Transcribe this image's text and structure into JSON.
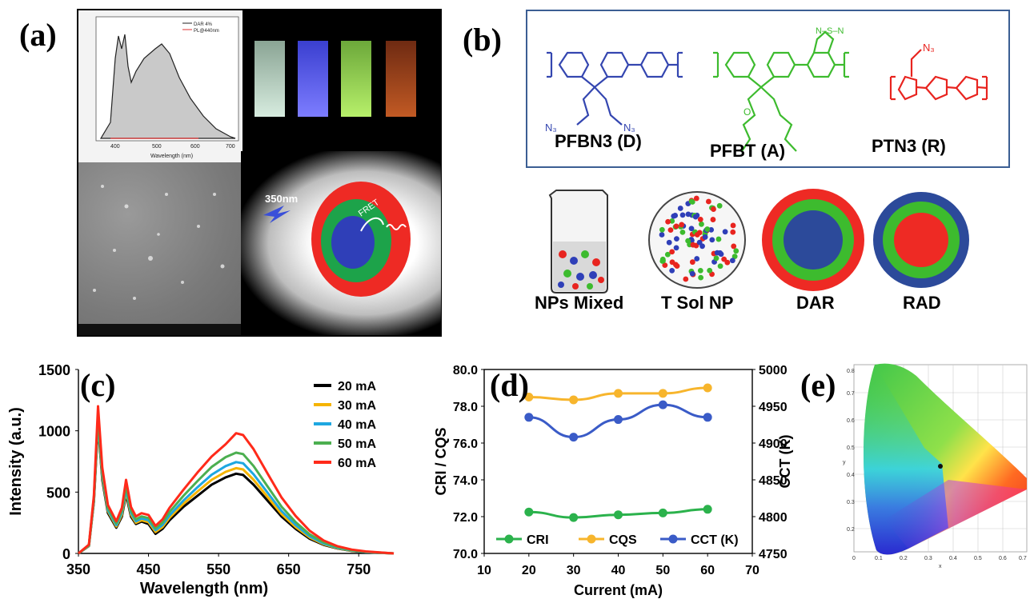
{
  "panels": {
    "a": {
      "label": "(a)",
      "inset_legend": [
        "DAR 4%",
        "PL@440nm"
      ],
      "inset_xlabel": "Wavelength (nm)",
      "inset_xticks": [
        "400",
        "500",
        "600",
        "700"
      ],
      "excitation": "350nm",
      "fret": "FRET"
    },
    "b": {
      "label": "(b)",
      "molecules": [
        "PFBN3 (D)",
        "PFBT (A)",
        "PTN3 (R)"
      ],
      "nanoparticles": [
        "NPs Mixed",
        "T Sol NP",
        "DAR",
        "RAD"
      ]
    },
    "c": {
      "label": "(c)"
    },
    "d": {
      "label": "(d)"
    },
    "e": {
      "label": "(e)",
      "xlabel": "x",
      "ylabel": "y",
      "xticks": [
        "0",
        "0.1",
        "0.2",
        "0.3",
        "0.4",
        "0.5",
        "0.6",
        "0.7"
      ],
      "yticks": [
        "0.1",
        "0.2",
        "0.3",
        "0.4",
        "0.5",
        "0.6",
        "0.7",
        "0.8"
      ]
    }
  },
  "chart_data": [
    {
      "type": "line",
      "panel": "c",
      "xlabel": "Wavelength (nm)",
      "ylabel": "Intensity (a.u.)",
      "xticks": [
        350,
        450,
        550,
        650,
        750
      ],
      "yticks": [
        0,
        500,
        1000,
        1500
      ],
      "xlim": [
        350,
        800
      ],
      "ylim": [
        0,
        1500
      ],
      "x": [
        350,
        365,
        372,
        378,
        384,
        392,
        404,
        412,
        418,
        425,
        432,
        440,
        450,
        460,
        470,
        480,
        500,
        520,
        540,
        560,
        575,
        585,
        600,
        620,
        640,
        660,
        680,
        700,
        720,
        740,
        760,
        780,
        800
      ],
      "series": [
        {
          "name": "20 mA",
          "color": "#000000",
          "values": [
            0,
            60,
            420,
            1050,
            600,
            330,
            210,
            300,
            480,
            300,
            240,
            260,
            240,
            160,
            200,
            270,
            380,
            470,
            560,
            620,
            650,
            640,
            560,
            430,
            300,
            200,
            120,
            70,
            40,
            20,
            10,
            5,
            0
          ]
        },
        {
          "name": "30 mA",
          "color": "#f5b400",
          "values": [
            0,
            62,
            430,
            1070,
            620,
            345,
            220,
            315,
            500,
            315,
            250,
            270,
            255,
            175,
            215,
            290,
            405,
            505,
            600,
            665,
            695,
            685,
            600,
            460,
            320,
            215,
            130,
            75,
            42,
            22,
            11,
            5,
            0
          ]
        },
        {
          "name": "40 mA",
          "color": "#1ea7e1",
          "values": [
            0,
            65,
            440,
            1090,
            640,
            355,
            230,
            330,
            520,
            330,
            262,
            285,
            270,
            190,
            232,
            310,
            432,
            540,
            642,
            712,
            745,
            735,
            645,
            495,
            345,
            232,
            140,
            80,
            45,
            24,
            12,
            6,
            0
          ]
        },
        {
          "name": "50 mA",
          "color": "#4caf50",
          "values": [
            0,
            68,
            455,
            1120,
            665,
            372,
            245,
            348,
            550,
            350,
            278,
            302,
            288,
            205,
            252,
            338,
            470,
            590,
            705,
            785,
            822,
            810,
            712,
            545,
            380,
            255,
            155,
            90,
            50,
            27,
            14,
            7,
            0
          ]
        },
        {
          "name": "60 mA",
          "color": "#ff2a1a",
          "values": [
            0,
            72,
            470,
            1200,
            700,
            395,
            262,
            372,
            600,
            378,
            302,
            328,
            314,
            225,
            278,
            372,
            520,
            660,
            790,
            890,
            980,
            965,
            850,
            650,
            455,
            305,
            185,
            105,
            58,
            31,
            16,
            8,
            0
          ]
        }
      ]
    },
    {
      "type": "line",
      "panel": "d",
      "xlabel": "Current (mA)",
      "ylabel": "CRI / CQS",
      "y2label": "CCT (K)",
      "xticks": [
        10,
        20,
        30,
        40,
        50,
        60,
        70
      ],
      "yticks": [
        "70.0",
        "72.0",
        "74.0",
        "76.0",
        "78.0",
        "80.0"
      ],
      "y2ticks": [
        4750,
        4800,
        4850,
        4900,
        4950,
        5000
      ],
      "xlim": [
        10,
        70
      ],
      "ylim": [
        70,
        80
      ],
      "y2lim": [
        4750,
        5000
      ],
      "x": [
        20,
        30,
        40,
        50,
        60
      ],
      "series": [
        {
          "name": "CRI",
          "color": "#2bb24c",
          "axis": "left",
          "values": [
            72.25,
            71.95,
            72.1,
            72.2,
            72.4
          ]
        },
        {
          "name": "CQS",
          "color": "#f7b52c",
          "axis": "left",
          "values": [
            78.5,
            78.35,
            78.7,
            78.7,
            79.0
          ]
        },
        {
          "name": "CCT (K)",
          "color": "#3a5bc7",
          "axis": "right",
          "values": [
            4935,
            4908,
            4932,
            4952,
            4935
          ]
        }
      ]
    }
  ]
}
